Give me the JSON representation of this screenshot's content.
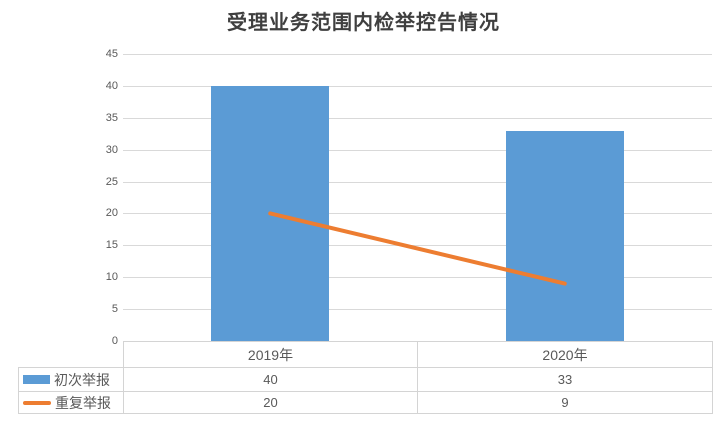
{
  "title": "受理业务范围内检举控告情况",
  "colors": {
    "bar_series": "#5B9BD5",
    "line_series": "#ED7D31",
    "gridline": "#D9D9D9",
    "table_border": "#D4D4D4",
    "axis_text": "#595959",
    "title_text": "#3F3F3F",
    "background": "#FFFFFF"
  },
  "chart_data": {
    "type": "bar",
    "title": "受理业务范围内检举控告情况",
    "categories": [
      "2019年",
      "2020年"
    ],
    "series": [
      {
        "name": "初次举报",
        "type": "bar",
        "color": "#5B9BD5",
        "values": [
          40,
          33
        ]
      },
      {
        "name": "重复举报",
        "type": "line",
        "color": "#ED7D31",
        "values": [
          20,
          9
        ]
      }
    ],
    "xlabel": "",
    "ylabel": "",
    "ylim": [
      0,
      45
    ],
    "yticks": [
      0,
      5,
      10,
      15,
      20,
      25,
      30,
      35,
      40,
      45
    ],
    "grid": true,
    "legend_position": "data-table-left",
    "data_table_shown": true
  }
}
